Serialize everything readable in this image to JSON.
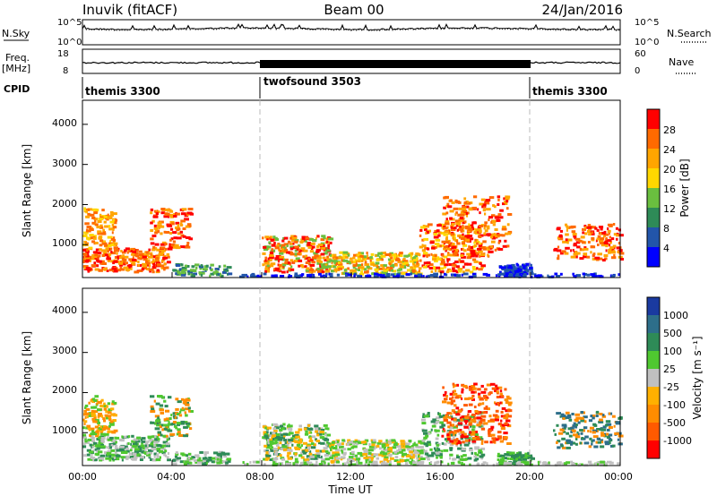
{
  "header": {
    "station": "Inuvik (fitACF)",
    "beam": "Beam 00",
    "date": "24/Jan/2016"
  },
  "labels": {
    "nsky": "N.Sky",
    "nsearch": "N.Search",
    "freq": "Freq.",
    "freq_unit": "[MHz]",
    "nave": "Nave",
    "cpid": "CPID",
    "slant_range": "Slant Range [km]",
    "power_axis": "Power [dB]",
    "velocity_axis": "Velocity [m s⁻¹]",
    "time_axis": "Time UT"
  },
  "colors": {
    "power": [
      "#0000ff",
      "#2255aa",
      "#2e8b57",
      "#6abf3f",
      "#ffd700",
      "#ffa500",
      "#ff6a00",
      "#ff0000"
    ],
    "velocity": [
      "#1a3aa0",
      "#2d6e8a",
      "#2e8b57",
      "#4fc830",
      "#c0c0c0",
      "#ffb000",
      "#ff8c00",
      "#ff5a00",
      "#ff0000"
    ]
  },
  "chart_data": [
    {
      "name": "noise-panel",
      "type": "line",
      "left_ticks": [
        "10^5",
        "10^0"
      ],
      "right_ticks": [
        "10^5",
        "10^0"
      ],
      "ylim": [
        0,
        5
      ]
    },
    {
      "name": "freq-nave-panel",
      "type": "line",
      "left_ticks": [
        "18",
        "8"
      ],
      "right_ticks": [
        "60",
        "0"
      ]
    },
    {
      "name": "cpid",
      "type": "table",
      "segments": [
        {
          "label": "themis 3300",
          "start": "00:00",
          "end": "08:00"
        },
        {
          "label": "twofsound 3503",
          "start": "08:00",
          "end": "20:00"
        },
        {
          "label": "themis 3300",
          "start": "20:00",
          "end": "24:00"
        }
      ]
    },
    {
      "name": "power",
      "type": "heatmap",
      "ylabel": "Slant Range [km]",
      "yticks": [
        "1000",
        "2000",
        "3000",
        "4000"
      ],
      "ylim": [
        180,
        4600
      ],
      "xlim": [
        0,
        24
      ],
      "colorbar_ticks": [
        "4",
        "8",
        "12",
        "16",
        "20",
        "24",
        "28"
      ],
      "colorbar_label": "Power [dB]"
    },
    {
      "name": "velocity",
      "type": "heatmap",
      "ylabel": "Slant Range [km]",
      "yticks": [
        "1000",
        "2000",
        "3000",
        "4000"
      ],
      "ylim": [
        180,
        4600
      ],
      "xlim": [
        0,
        24
      ],
      "xticks": [
        "00:00",
        "04:00",
        "08:00",
        "12:00",
        "16:00",
        "20:00",
        "00:00"
      ],
      "xlabel": "Time UT",
      "colorbar_ticks": [
        "1000",
        "500",
        "100",
        "25",
        "-25",
        "-100",
        "-500",
        "-1000"
      ],
      "colorbar_label": "Velocity [m s⁻¹]"
    }
  ]
}
